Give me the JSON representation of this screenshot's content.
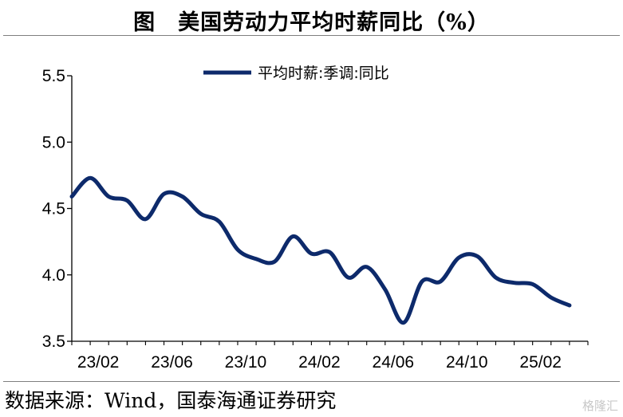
{
  "title": "图　美国劳动力平均时薪同比（%）",
  "source": "数据来源：Wind，国泰海通证券研究",
  "watermark": "格隆汇",
  "colors": {
    "line": "#0d2a6b",
    "axis": "#000000",
    "rule": "#7f7f7f"
  },
  "chart_data": {
    "type": "line",
    "title": "美国劳动力平均时薪同比（%）",
    "xlabel": "",
    "ylabel": "",
    "ylim": [
      3.5,
      5.5
    ],
    "yticks": [
      3.5,
      4.0,
      4.5,
      5.0,
      5.5
    ],
    "ytick_labels": [
      "3.5",
      "4.0",
      "4.5",
      "5.0",
      "5.5"
    ],
    "xtick_labels": [
      "23/02",
      "23/06",
      "23/10",
      "24/02",
      "24/06",
      "24/10",
      "25/02"
    ],
    "grid": false,
    "legend_position": "top-center",
    "categories": [
      "23/01",
      "23/02",
      "23/03",
      "23/04",
      "23/05",
      "23/06",
      "23/07",
      "23/08",
      "23/09",
      "23/10",
      "23/11",
      "23/12",
      "24/01",
      "24/02",
      "24/03",
      "24/04",
      "24/05",
      "24/06",
      "24/07",
      "24/08",
      "24/09",
      "24/10",
      "24/11",
      "24/12",
      "25/01",
      "25/02",
      "25/03",
      "25/04"
    ],
    "series": [
      {
        "name": "平均时薪:季调:同比",
        "values": [
          4.59,
          4.73,
          4.59,
          4.56,
          4.42,
          4.61,
          4.59,
          4.46,
          4.4,
          4.19,
          4.12,
          4.1,
          4.29,
          4.16,
          4.17,
          3.98,
          4.06,
          3.89,
          3.64,
          3.95,
          3.95,
          4.13,
          4.14,
          3.98,
          3.94,
          3.93,
          3.83,
          3.77
        ]
      }
    ]
  }
}
